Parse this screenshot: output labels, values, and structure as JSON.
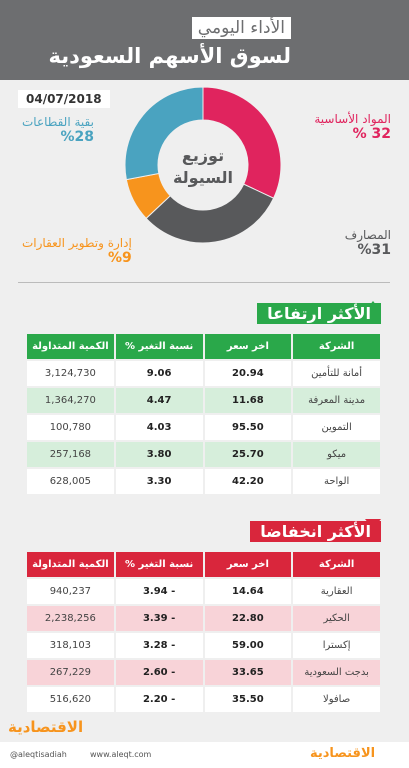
{
  "header": {
    "title": "الأداء اليومي",
    "subtitle": "لسوق الأسهم السعودية",
    "date": "04/07/2018"
  },
  "chart_data": {
    "type": "pie",
    "title": "توزيع السيولة",
    "categories": [
      "المواد الأساسية",
      "المصارف",
      "إدارة وتطوير العقارات",
      "بقية القطاعات"
    ],
    "values": [
      32,
      31,
      9,
      28
    ],
    "value_labels": [
      "32 %",
      "%31",
      "%9",
      "%28"
    ],
    "colors": [
      "#e0245e",
      "#58595b",
      "#f7941d",
      "#4aa3c0"
    ]
  },
  "gainers": {
    "title": "الأكثر ارتفاعا",
    "columns": [
      "الشركة",
      "اخر سعر",
      "نسبة التغير %",
      "الكمية المتداولة"
    ],
    "rows": [
      [
        "أمانة للتأمين",
        "20.94",
        "9.06",
        "3,124,730"
      ],
      [
        "مدينة المعرفة",
        "11.68",
        "4.47",
        "1,364,270"
      ],
      [
        "التموين",
        "95.50",
        "4.03",
        "100,780"
      ],
      [
        "ميكو",
        "25.70",
        "3.80",
        "257,168"
      ],
      [
        "الواحة",
        "42.20",
        "3.30",
        "628,005"
      ]
    ]
  },
  "losers": {
    "title": "الأكثر انخفاضا",
    "columns": [
      "الشركة",
      "اخر سعر",
      "نسبة التغير %",
      "الكمية المتداولة"
    ],
    "rows": [
      [
        "العقارية",
        "14.64",
        "- 3.94",
        "940,237"
      ],
      [
        "الحكير",
        "22.80",
        "- 3.39",
        "2,238,256"
      ],
      [
        "إكسترا",
        "59.00",
        "- 3.28",
        "318,103"
      ],
      [
        "بدجت السعودية",
        "33.65",
        "- 2.60",
        "267,229"
      ],
      [
        "صافولا",
        "35.50",
        "- 2.20",
        "516,620"
      ]
    ]
  },
  "footer": {
    "logo": "الاقتصادية",
    "twitter": "@aleqtisadiah",
    "website": "www.aleqt.com"
  }
}
